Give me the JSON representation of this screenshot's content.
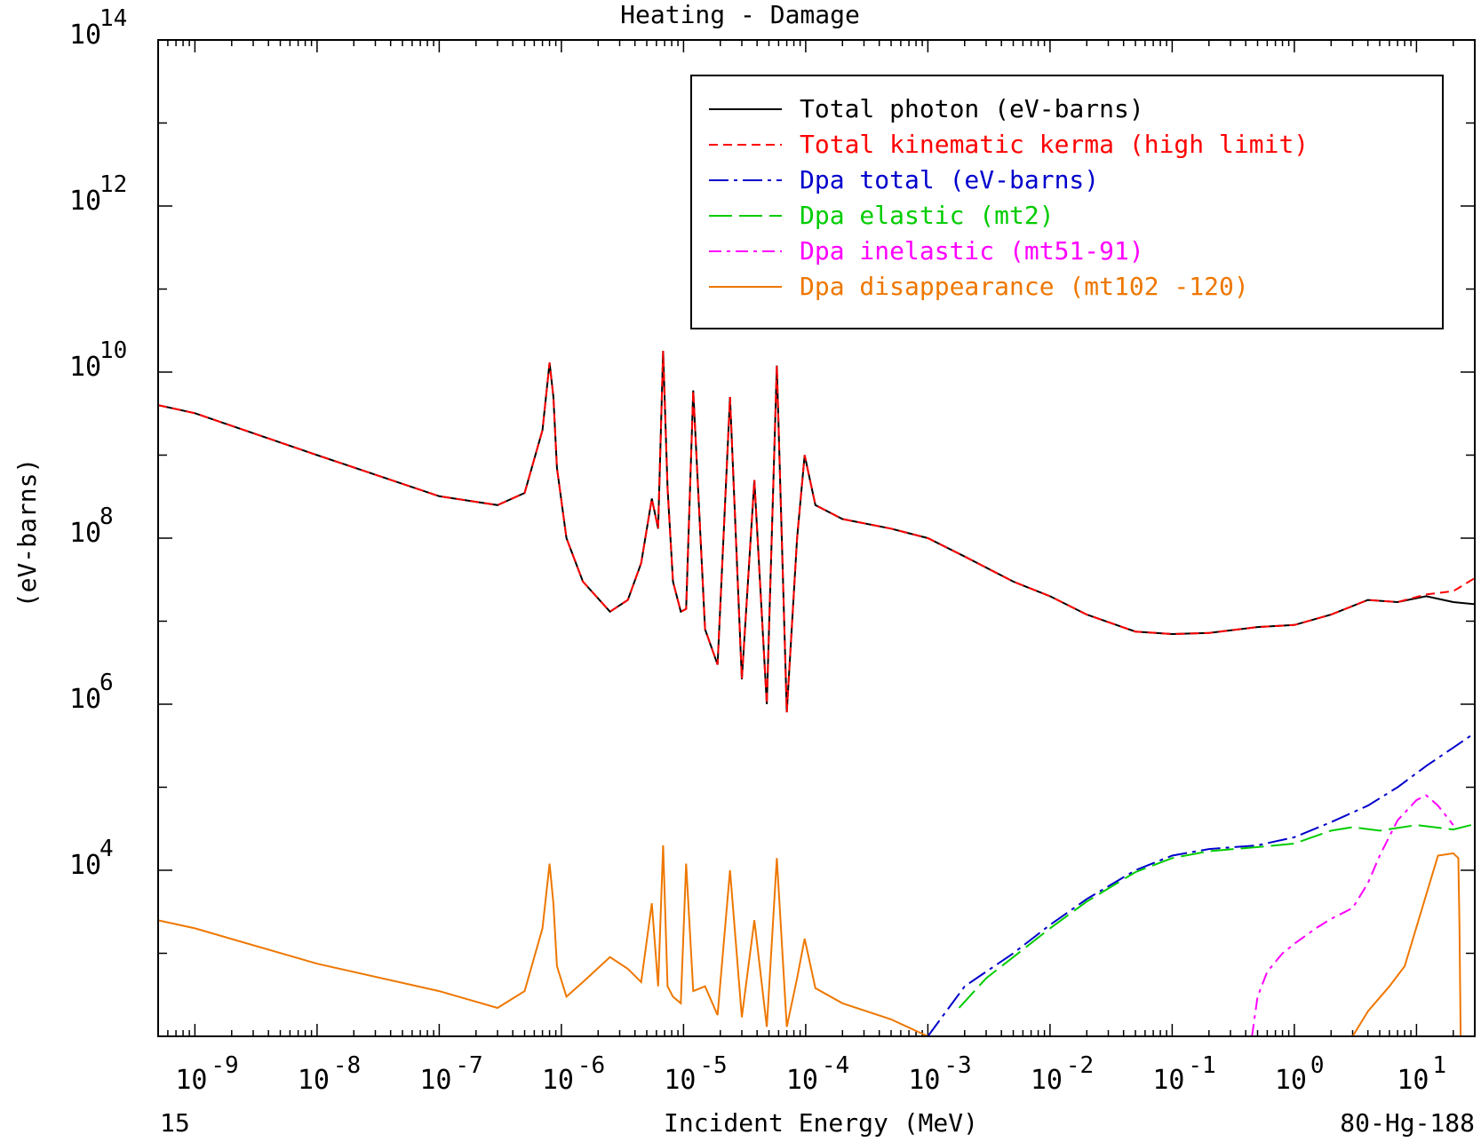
{
  "chart_data": {
    "type": "line",
    "title": "Heating - Damage",
    "xlabel": "Incident Energy (MeV)",
    "ylabel": "(eV-barns)",
    "x_scale": "log",
    "y_scale": "log",
    "xlim": [
      5e-10,
      30
    ],
    "ylim": [
      100,
      100000000000000.0
    ],
    "x_ticks": [
      {
        "value": 1e-09,
        "base": "10",
        "exp": "-9"
      },
      {
        "value": 1e-08,
        "base": "10",
        "exp": "-8"
      },
      {
        "value": 1e-07,
        "base": "10",
        "exp": "-7"
      },
      {
        "value": 1e-06,
        "base": "10",
        "exp": "-6"
      },
      {
        "value": 1e-05,
        "base": "10",
        "exp": "-5"
      },
      {
        "value": 0.0001,
        "base": "10",
        "exp": "-4"
      },
      {
        "value": 0.001,
        "base": "10",
        "exp": "-3"
      },
      {
        "value": 0.01,
        "base": "10",
        "exp": "-2"
      },
      {
        "value": 0.1,
        "base": "10",
        "exp": "-1"
      },
      {
        "value": 1,
        "base": "10",
        "exp": "0"
      },
      {
        "value": 10,
        "base": "10",
        "exp": "1"
      }
    ],
    "y_ticks": [
      {
        "value": 10000.0,
        "base": "10",
        "exp": "4"
      },
      {
        "value": 1000000.0,
        "base": "10",
        "exp": "6"
      },
      {
        "value": 100000000.0,
        "base": "10",
        "exp": "8"
      },
      {
        "value": 10000000000.0,
        "base": "10",
        "exp": "10"
      },
      {
        "value": 1000000000000.0,
        "base": "10",
        "exp": "12"
      },
      {
        "value": 100000000000000.0,
        "base": "10",
        "exp": "14"
      }
    ],
    "legend_placement": "top-right",
    "footer_left": "15",
    "footer_right": "80-Hg-188",
    "series": [
      {
        "name": "Total photon (eV-barns)",
        "color": "#000000",
        "dash": "solid",
        "x": [
          5e-10,
          1e-09,
          1e-08,
          1e-07,
          3e-07,
          5e-07,
          7e-07,
          8e-07,
          8.6e-07,
          9.2e-07,
          1.1e-06,
          1.5e-06,
          2.5e-06,
          3.5e-06,
          4.5e-06,
          5.5e-06,
          6.2e-06,
          6.8e-06,
          7.4e-06,
          8.2e-06,
          9.5e-06,
          1.05e-05,
          1.2e-05,
          1.5e-05,
          1.9e-05,
          2.4e-05,
          3e-05,
          3.8e-05,
          4.8e-05,
          5.8e-05,
          7e-05,
          8.5e-05,
          9.8e-05,
          0.00012,
          0.0002,
          0.0005,
          0.001,
          0.002,
          0.005,
          0.01,
          0.02,
          0.05,
          0.1,
          0.2,
          0.5,
          1,
          2,
          4,
          7,
          12,
          20,
          30
        ],
        "y": [
          4000000000.0,
          3200000000.0,
          1000000000.0,
          320000000.0,
          250000000.0,
          350000000.0,
          2000000000.0,
          13000000000.0,
          5000000000.0,
          700000000.0,
          100000000.0,
          30000000.0,
          13000000.0,
          18000000.0,
          50000000.0,
          300000000.0,
          130000000.0,
          18000000000.0,
          400000000.0,
          30000000.0,
          13000000.0,
          14000000.0,
          6000000000.0,
          8000000.0,
          3000000.0,
          5000000000.0,
          2000000.0,
          500000000.0,
          1000000.0,
          12000000000.0,
          800000.0,
          100000000.0,
          1000000000.0,
          250000000.0,
          170000000.0,
          130000000.0,
          100000000.0,
          60000000.0,
          30000000.0,
          20000000.0,
          12000000.0,
          7500000.0,
          7000000.0,
          7200000.0,
          8500000.0,
          9000000.0,
          12000000.0,
          18000000.0,
          17000000.0,
          20000000.0,
          17000000.0,
          16000000.0
        ]
      },
      {
        "name": "Total kinematic kerma (high limit)",
        "color": "#ff0000",
        "dash": "10,6",
        "x": [
          5e-10,
          1e-09,
          1e-08,
          1e-07,
          3e-07,
          5e-07,
          7e-07,
          8e-07,
          8.6e-07,
          9.2e-07,
          1.1e-06,
          1.5e-06,
          2.5e-06,
          3.5e-06,
          4.5e-06,
          5.5e-06,
          6.2e-06,
          6.8e-06,
          7.4e-06,
          8.2e-06,
          9.5e-06,
          1.05e-05,
          1.2e-05,
          1.5e-05,
          1.9e-05,
          2.4e-05,
          3e-05,
          3.8e-05,
          4.8e-05,
          5.8e-05,
          7e-05,
          8.5e-05,
          9.8e-05,
          0.00012,
          0.0002,
          0.0005,
          0.001,
          0.002,
          0.005,
          0.01,
          0.02,
          0.05,
          0.1,
          0.2,
          0.5,
          1,
          2,
          4,
          7,
          12,
          20,
          30
        ],
        "y": [
          4000000000.0,
          3200000000.0,
          1000000000.0,
          320000000.0,
          250000000.0,
          350000000.0,
          2000000000.0,
          13000000000.0,
          5000000000.0,
          700000000.0,
          100000000.0,
          30000000.0,
          13000000.0,
          18000000.0,
          50000000.0,
          300000000.0,
          130000000.0,
          18000000000.0,
          400000000.0,
          30000000.0,
          13000000.0,
          14000000.0,
          6000000000.0,
          8000000.0,
          3000000.0,
          5000000000.0,
          2000000.0,
          500000000.0,
          1000000.0,
          12000000000.0,
          800000.0,
          100000000.0,
          1000000000.0,
          250000000.0,
          170000000.0,
          130000000.0,
          100000000.0,
          60000000.0,
          30000000.0,
          20000000.0,
          12000000.0,
          7500000.0,
          7000000.0,
          7200000.0,
          8500000.0,
          9000000.0,
          12000000.0,
          18000000.0,
          17000000.0,
          21000000.0,
          23000000.0,
          33000000.0
        ]
      },
      {
        "name": "Dpa total (eV-barns)",
        "color": "#0000cc",
        "dash": "22,6,4,6",
        "x": [
          0.001,
          0.002,
          0.005,
          0.01,
          0.02,
          0.05,
          0.1,
          0.2,
          0.5,
          1,
          2,
          4,
          7,
          12,
          20,
          30
        ],
        "y": [
          100,
          400,
          1000,
          2200,
          4500,
          10000.0,
          15000.0,
          18000.0,
          20000.0,
          25000.0,
          38000.0,
          60000.0,
          100000.0,
          180000.0,
          300000.0,
          450000.0
        ]
      },
      {
        "name": "Dpa elastic (mt2)",
        "color": "#00cc00",
        "dash": "26,8",
        "x": [
          0.0018,
          0.003,
          0.005,
          0.01,
          0.02,
          0.05,
          0.1,
          0.2,
          0.5,
          1,
          2,
          3,
          5,
          10,
          20,
          30
        ],
        "y": [
          220,
          500,
          900,
          2000,
          4200,
          9500,
          14000.0,
          17000.0,
          19000.0,
          21000.0,
          30000.0,
          33000.0,
          30000.0,
          35000.0,
          31000.0,
          36000.0
        ]
      },
      {
        "name": "Dpa inelastic (mt51-91)",
        "color": "#ff00ff",
        "dash": "14,6,4,6",
        "x": [
          0.45,
          0.5,
          0.6,
          0.8,
          1,
          1.5,
          2,
          3,
          4,
          5,
          7,
          10,
          12,
          15,
          20
        ],
        "y": [
          100,
          300,
          600,
          1000,
          1300,
          2000,
          2600,
          3500,
          7000,
          15000.0,
          40000.0,
          70000.0,
          80000.0,
          60000.0,
          35000.0
        ]
      },
      {
        "name": "Dpa disappearance (mt102 -120)",
        "color": "#ee7700",
        "dash": "solid",
        "x": [
          5e-10,
          1e-09,
          1e-08,
          1e-07,
          3e-07,
          5e-07,
          7e-07,
          8e-07,
          8.6e-07,
          9.2e-07,
          1.1e-06,
          1.5e-06,
          2.5e-06,
          3.5e-06,
          4.5e-06,
          5.5e-06,
          6.2e-06,
          6.8e-06,
          7.4e-06,
          8.2e-06,
          9.5e-06,
          1.05e-05,
          1.2e-05,
          1.5e-05,
          1.9e-05,
          2.4e-05,
          3e-05,
          3.8e-05,
          4.8e-05,
          5.8e-05,
          7e-05,
          8.5e-05,
          9.8e-05,
          0.00012,
          0.0002,
          0.0005,
          0.001,
          3,
          4,
          6,
          8,
          15,
          20,
          22,
          22.5,
          23
        ],
        "y": [
          2500,
          2000,
          750,
          350,
          220,
          350,
          2000,
          12000.0,
          4000.0,
          700,
          300,
          450,
          900,
          650,
          450,
          4000,
          400,
          20000.0,
          400,
          300,
          250,
          12000.0,
          350,
          400,
          180,
          10000.0,
          170,
          2500,
          130,
          14000.0,
          130,
          500,
          1500,
          380,
          250,
          160,
          100,
          100,
          200,
          400,
          700,
          15000.0,
          16000.0,
          14000.0,
          2000,
          100
        ]
      }
    ]
  }
}
